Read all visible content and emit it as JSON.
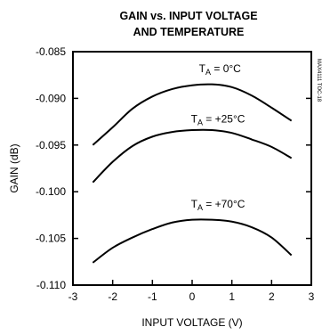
{
  "chart_data": {
    "type": "line",
    "title_lines": [
      "GAIN vs. INPUT VOLTAGE",
      "AND TEMPERATURE"
    ],
    "xlabel": "INPUT VOLTAGE (V)",
    "ylabel": "GAIN (dB)",
    "xlim": [
      -3,
      3
    ],
    "ylim": [
      -0.11,
      -0.085
    ],
    "xticks": [
      "-3",
      "-2",
      "-1",
      "0",
      "1",
      "2",
      "3"
    ],
    "xtick_values": [
      -3,
      -2,
      -1,
      0,
      1,
      2,
      3
    ],
    "yticks": [
      "-0.085",
      "-0.090",
      "-0.095",
      "-0.100",
      "-0.105",
      "-0.110"
    ],
    "ytick_values": [
      -0.085,
      -0.09,
      -0.095,
      -0.1,
      -0.105,
      -0.11
    ],
    "grid": false,
    "side_label": "MAX4111 TOC-18",
    "series": [
      {
        "name": "TA = 0°C",
        "label_main": "T",
        "label_sub": "A",
        "label_rest": " = 0°C",
        "label_at": [
          0.7,
          -0.0872
        ],
        "x": [
          -2.5,
          -2.0,
          -1.5,
          -1.0,
          -0.5,
          0.0,
          0.5,
          1.0,
          1.5,
          2.0,
          2.5
        ],
        "y": [
          -0.095,
          -0.0931,
          -0.0911,
          -0.0898,
          -0.089,
          -0.0886,
          -0.0885,
          -0.0888,
          -0.0897,
          -0.091,
          -0.0924
        ]
      },
      {
        "name": "TA = +25°C",
        "label_main": "T",
        "label_sub": "A",
        "label_rest": " = +25°C",
        "label_at": [
          0.65,
          -0.0926
        ],
        "x": [
          -2.5,
          -2.0,
          -1.5,
          -1.0,
          -0.5,
          0.0,
          0.5,
          1.0,
          1.5,
          2.0,
          2.5
        ],
        "y": [
          -0.099,
          -0.0968,
          -0.0951,
          -0.0941,
          -0.0936,
          -0.0934,
          -0.0934,
          -0.0937,
          -0.0944,
          -0.0952,
          -0.0964
        ]
      },
      {
        "name": "TA = +70°C",
        "label_main": "T",
        "label_sub": "A",
        "label_rest": " = +70°C",
        "label_at": [
          0.65,
          -0.1017
        ],
        "x": [
          -2.5,
          -2.0,
          -1.5,
          -1.0,
          -0.5,
          0.0,
          0.5,
          1.0,
          1.5,
          2.0,
          2.5
        ],
        "y": [
          -0.1076,
          -0.106,
          -0.1049,
          -0.104,
          -0.1033,
          -0.103,
          -0.103,
          -0.1032,
          -0.1038,
          -0.1049,
          -0.1068
        ]
      }
    ]
  }
}
